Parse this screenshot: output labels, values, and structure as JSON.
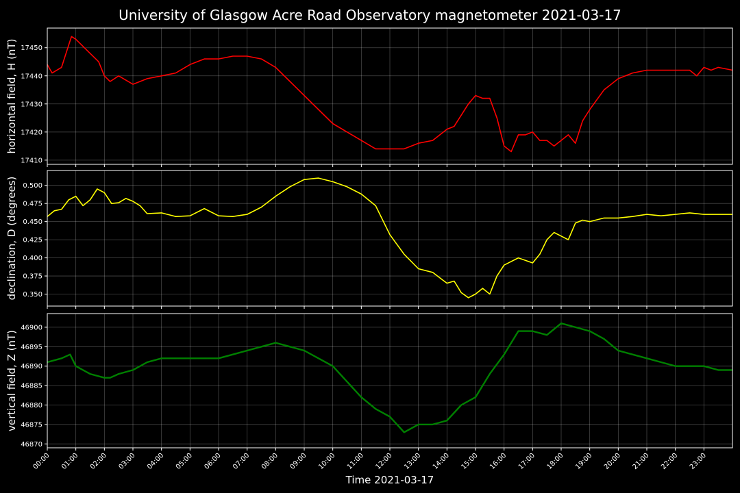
{
  "figure": {
    "title": "University of Glasgow Acre Road Observatory magnetometer 2021-03-17",
    "xlabel": "Time 2021-03-17"
  },
  "chart_data": [
    {
      "type": "line",
      "title": "",
      "xlabel": "",
      "ylabel": "horizontal field, H (nT)",
      "series": [
        {
          "color": "#ff0000",
          "x": [
            0,
            0.17,
            0.5,
            0.75,
            0.85,
            1,
            1.2,
            1.5,
            1.8,
            2,
            2.2,
            2.5,
            3,
            3.5,
            4,
            4.5,
            5,
            5.5,
            6,
            6.5,
            7,
            7.5,
            8,
            8.5,
            9,
            9.5,
            10,
            10.5,
            11,
            11.5,
            12,
            12.5,
            13,
            13.5,
            14,
            14.25,
            14.5,
            14.75,
            15,
            15.25,
            15.5,
            15.75,
            16,
            16.25,
            16.5,
            16.75,
            17,
            17.25,
            17.5,
            17.75,
            18,
            18.25,
            18.5,
            18.75,
            19,
            19.5,
            20,
            20.5,
            21,
            21.5,
            22,
            22.5,
            22.75,
            23,
            23.25,
            23.5,
            24
          ],
          "y": [
            17444,
            17441,
            17443,
            17451,
            17454,
            17453,
            17451,
            17448,
            17445,
            17440,
            17438,
            17440,
            17437,
            17439,
            17440,
            17441,
            17444,
            17446,
            17446,
            17447,
            17447,
            17446,
            17443,
            17438,
            17433,
            17428,
            17423,
            17420,
            17417,
            17414,
            17414,
            17414,
            17416,
            17417,
            17421,
            17422,
            17426,
            17430,
            17433,
            17432,
            17432,
            17425,
            17415,
            17413,
            17419,
            17419,
            17420,
            17417,
            17417,
            17415,
            17417,
            17419,
            17416,
            17424,
            17428,
            17435,
            17439,
            17441,
            17442,
            17442,
            17442,
            17442,
            17440,
            17443,
            17442,
            17443,
            17442
          ]
        }
      ],
      "ylim": [
        17408.5,
        17457
      ],
      "yticks": [
        17410,
        17420,
        17430,
        17440,
        17450
      ],
      "xlim": [
        0,
        24
      ],
      "grid": true
    },
    {
      "type": "line",
      "title": "",
      "xlabel": "",
      "ylabel": "declination, D (degrees)",
      "series": [
        {
          "color": "#ffff00",
          "x": [
            0,
            0.25,
            0.5,
            0.75,
            1,
            1.25,
            1.5,
            1.75,
            2,
            2.25,
            2.5,
            2.75,
            3,
            3.25,
            3.5,
            4,
            4.5,
            5,
            5.5,
            6,
            6.5,
            7,
            7.5,
            8,
            8.5,
            9,
            9.5,
            10,
            10.5,
            11,
            11.5,
            12,
            12.5,
            13,
            13.5,
            14,
            14.25,
            14.5,
            14.75,
            15,
            15.25,
            15.5,
            15.75,
            16,
            16.5,
            17,
            17.25,
            17.5,
            17.75,
            18,
            18.25,
            18.5,
            18.75,
            19,
            19.5,
            20,
            20.5,
            21,
            21.5,
            22,
            22.5,
            23,
            23.5,
            24
          ],
          "y": [
            0.457,
            0.465,
            0.467,
            0.48,
            0.485,
            0.472,
            0.48,
            0.495,
            0.49,
            0.475,
            0.476,
            0.482,
            0.478,
            0.472,
            0.461,
            0.462,
            0.457,
            0.458,
            0.468,
            0.458,
            0.457,
            0.46,
            0.47,
            0.485,
            0.498,
            0.508,
            0.51,
            0.505,
            0.498,
            0.488,
            0.472,
            0.432,
            0.405,
            0.385,
            0.38,
            0.365,
            0.368,
            0.352,
            0.345,
            0.35,
            0.358,
            0.35,
            0.375,
            0.39,
            0.4,
            0.393,
            0.405,
            0.425,
            0.435,
            0.43,
            0.425,
            0.448,
            0.452,
            0.45,
            0.455,
            0.455,
            0.457,
            0.46,
            0.458,
            0.46,
            0.462,
            0.46,
            0.46,
            0.46
          ]
        }
      ],
      "ylim": [
        0.3335,
        0.5205
      ],
      "yticks": [
        0.35,
        0.375,
        0.4,
        0.425,
        0.45,
        0.475,
        0.5
      ],
      "xlim": [
        0,
        24
      ],
      "grid": true
    },
    {
      "type": "line",
      "title": "",
      "xlabel": "",
      "ylabel": "vertical field, Z (nT)",
      "series": [
        {
          "color": "#008000",
          "x": [
            0,
            0.5,
            0.8,
            1,
            1.5,
            2,
            2.2,
            2.5,
            3,
            3.5,
            4,
            5,
            6,
            6.5,
            7,
            7.5,
            8,
            8.5,
            9,
            9.5,
            10,
            10.5,
            11,
            11.5,
            12,
            12.5,
            13,
            13.5,
            14,
            14.5,
            15,
            15.5,
            16,
            16.5,
            17,
            17.5,
            18,
            18.5,
            19,
            19.5,
            20,
            20.5,
            21,
            21.5,
            22,
            22.5,
            23,
            23.5,
            24
          ],
          "y": [
            46891,
            46892,
            46893,
            46890,
            46888,
            46887,
            46887,
            46888,
            46889,
            46891,
            46892,
            46892,
            46892,
            46893,
            46894,
            46895,
            46896,
            46895,
            46894,
            46892,
            46890,
            46886,
            46882,
            46879,
            46877,
            46873,
            46875,
            46875,
            46876,
            46880,
            46882,
            46888,
            46893,
            46899,
            46899,
            46898,
            46901,
            46900,
            46899,
            46897,
            46894,
            46893,
            46892,
            46891,
            46890,
            46890,
            46890,
            46889,
            46889
          ]
        }
      ],
      "ylim": [
        46869,
        46903.5
      ],
      "yticks": [
        46870,
        46875,
        46880,
        46885,
        46890,
        46895,
        46900
      ],
      "xlim": [
        0,
        24
      ],
      "grid": true
    }
  ],
  "xticks": [
    "00:00",
    "01:00",
    "02:00",
    "03:00",
    "04:00",
    "05:00",
    "06:00",
    "07:00",
    "08:00",
    "09:00",
    "10:00",
    "11:00",
    "12:00",
    "13:00",
    "14:00",
    "15:00",
    "16:00",
    "17:00",
    "18:00",
    "19:00",
    "20:00",
    "21:00",
    "22:00",
    "23:00"
  ]
}
